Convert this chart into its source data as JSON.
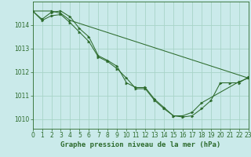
{
  "title": "Graphe pression niveau de la mer (hPa)",
  "bg_color": "#caeaea",
  "grid_color": "#a8d4c8",
  "line_color": "#2d6b2d",
  "marker_color": "#2d6b2d",
  "series": [
    {
      "x": [
        0,
        1,
        2,
        3,
        4,
        5,
        6,
        7,
        8,
        9,
        10,
        11,
        12,
        13,
        14,
        15,
        16,
        17,
        18,
        19,
        20,
        21,
        22,
        23
      ],
      "y": [
        1014.6,
        1014.2,
        1014.4,
        1014.45,
        1014.1,
        1013.7,
        1013.3,
        1012.65,
        1012.45,
        1012.15,
        1011.75,
        1011.3,
        1011.3,
        1010.8,
        1010.45,
        1010.15,
        1010.1,
        1010.15,
        1010.45,
        1010.8,
        1011.55,
        1011.55,
        1011.55,
        1011.8
      ]
    },
    {
      "x": [
        0,
        1,
        2,
        3,
        4,
        5,
        6,
        7,
        8,
        9,
        10,
        11,
        12,
        13,
        14,
        15,
        16,
        17,
        18,
        22,
        23
      ],
      "y": [
        1014.6,
        1014.25,
        1014.55,
        1014.6,
        1014.35,
        1013.85,
        1013.5,
        1012.7,
        1012.5,
        1012.25,
        1011.55,
        1011.35,
        1011.35,
        1010.85,
        1010.5,
        1010.15,
        1010.15,
        1010.3,
        1010.7,
        1011.6,
        1011.75
      ]
    },
    {
      "x": [
        0,
        2,
        3,
        4,
        23
      ],
      "y": [
        1014.6,
        1014.6,
        1014.5,
        1014.2,
        1011.75
      ]
    }
  ],
  "xlim": [
    0,
    23
  ],
  "ylim": [
    1009.6,
    1015.0
  ],
  "yticks": [
    1010,
    1011,
    1012,
    1013,
    1014
  ],
  "xticks": [
    0,
    1,
    2,
    3,
    4,
    5,
    6,
    7,
    8,
    9,
    10,
    11,
    12,
    13,
    14,
    15,
    16,
    17,
    18,
    19,
    20,
    21,
    22,
    23
  ],
  "title_fontsize": 6.5,
  "tick_fontsize": 5.5
}
